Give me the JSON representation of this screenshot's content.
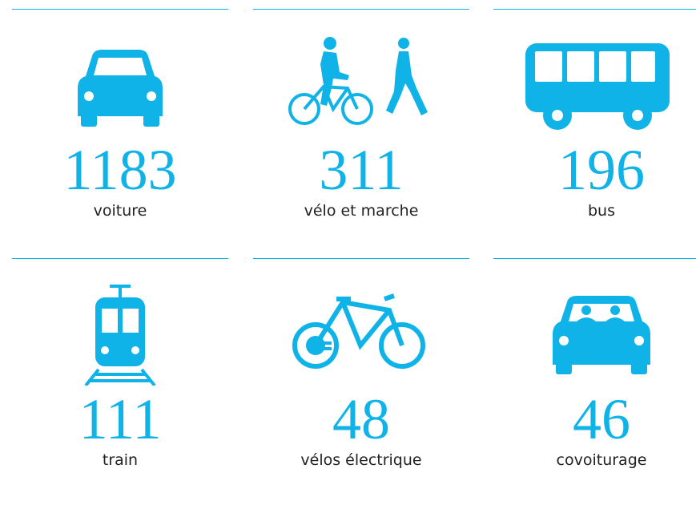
{
  "items": [
    {
      "value": 1183,
      "label": "voiture"
    },
    {
      "value": 311,
      "label": "vélo et marche"
    },
    {
      "value": 196,
      "label": "bus"
    },
    {
      "value": 111,
      "label": "train"
    },
    {
      "value": 48,
      "label": "vélos électrique"
    },
    {
      "value": 46,
      "label": "covoiturage"
    }
  ]
}
